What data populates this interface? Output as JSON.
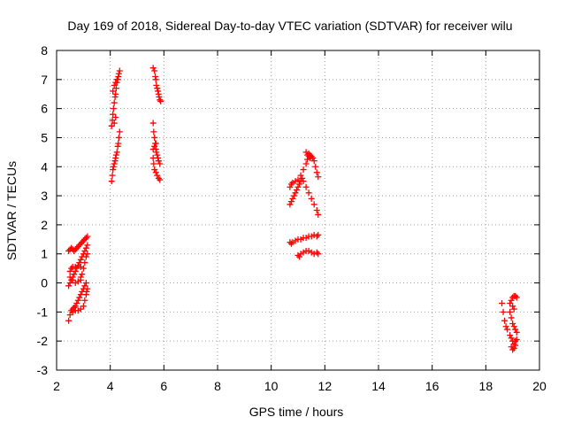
{
  "chart_data": {
    "type": "scatter",
    "title": "Day 169 of 2018, Sidereal Day-to-day VTEC variation (SDTVAR) for receiver wilu",
    "xlabel": "GPS time / hours",
    "ylabel": "SDTVAR / TECUs",
    "xlim": [
      2,
      20
    ],
    "ylim": [
      -3,
      8
    ],
    "xticks": [
      2,
      4,
      6,
      8,
      10,
      12,
      14,
      16,
      18,
      20
    ],
    "yticks": [
      -3,
      -2,
      -1,
      0,
      1,
      2,
      3,
      4,
      5,
      6,
      7,
      8
    ],
    "grid": true,
    "marker": "+",
    "series": [
      {
        "name": "SDTVAR",
        "color": "#ff0000",
        "points": [
          [
            2.45,
            -1.3
          ],
          [
            2.5,
            -1.1
          ],
          [
            2.55,
            -0.95
          ],
          [
            2.6,
            -0.9
          ],
          [
            2.65,
            -0.85
          ],
          [
            2.7,
            -0.8
          ],
          [
            2.75,
            -0.7
          ],
          [
            2.8,
            -0.6
          ],
          [
            2.85,
            -0.5
          ],
          [
            2.9,
            -0.4
          ],
          [
            2.95,
            -0.3
          ],
          [
            3.0,
            -0.2
          ],
          [
            3.05,
            -0.1
          ],
          [
            3.1,
            0.0
          ],
          [
            3.15,
            -0.2
          ],
          [
            2.6,
            -1.0
          ],
          [
            2.7,
            -0.95
          ],
          [
            2.8,
            -0.95
          ],
          [
            2.9,
            -0.9
          ],
          [
            3.0,
            -0.8
          ],
          [
            3.05,
            -0.6
          ],
          [
            3.1,
            -0.4
          ],
          [
            3.12,
            -0.3
          ],
          [
            2.45,
            -0.1
          ],
          [
            2.5,
            0.0
          ],
          [
            2.55,
            0.1
          ],
          [
            2.6,
            0.2
          ],
          [
            2.65,
            0.3
          ],
          [
            2.7,
            0.4
          ],
          [
            2.75,
            0.5
          ],
          [
            2.8,
            0.6
          ],
          [
            2.85,
            0.7
          ],
          [
            2.9,
            0.8
          ],
          [
            2.95,
            0.9
          ],
          [
            3.0,
            1.0
          ],
          [
            3.05,
            1.1
          ],
          [
            3.1,
            1.2
          ],
          [
            3.15,
            1.3
          ],
          [
            2.5,
            0.4
          ],
          [
            2.55,
            0.5
          ],
          [
            2.6,
            0.55
          ],
          [
            2.7,
            0.55
          ],
          [
            2.8,
            0.6
          ],
          [
            2.9,
            0.55
          ],
          [
            2.5,
            0.2
          ],
          [
            2.6,
            0.1
          ],
          [
            2.7,
            0.0
          ],
          [
            2.8,
            0.05
          ],
          [
            2.9,
            0.1
          ],
          [
            2.45,
            1.1
          ],
          [
            2.5,
            1.15
          ],
          [
            2.55,
            1.2
          ],
          [
            2.6,
            1.15
          ],
          [
            2.65,
            1.1
          ],
          [
            2.7,
            1.15
          ],
          [
            2.75,
            1.2
          ],
          [
            2.8,
            1.25
          ],
          [
            2.85,
            1.3
          ],
          [
            2.9,
            1.35
          ],
          [
            2.95,
            1.4
          ],
          [
            3.0,
            1.45
          ],
          [
            3.05,
            1.5
          ],
          [
            3.1,
            1.55
          ],
          [
            3.15,
            1.6
          ],
          [
            2.9,
            0.2
          ],
          [
            2.95,
            0.3
          ],
          [
            3.0,
            0.5
          ],
          [
            3.05,
            0.7
          ],
          [
            3.1,
            0.9
          ],
          [
            3.15,
            1.0
          ],
          [
            4.05,
            3.5
          ],
          [
            4.08,
            3.7
          ],
          [
            4.1,
            3.9
          ],
          [
            4.12,
            4.0
          ],
          [
            4.15,
            4.1
          ],
          [
            4.18,
            4.2
          ],
          [
            4.2,
            4.3
          ],
          [
            4.22,
            4.4
          ],
          [
            4.25,
            4.5
          ],
          [
            4.28,
            4.7
          ],
          [
            4.3,
            4.8
          ],
          [
            4.32,
            5.0
          ],
          [
            4.35,
            5.2
          ],
          [
            4.05,
            5.4
          ],
          [
            4.08,
            5.6
          ],
          [
            4.1,
            5.8
          ],
          [
            4.12,
            6.0
          ],
          [
            4.15,
            6.2
          ],
          [
            4.18,
            6.4
          ],
          [
            4.2,
            6.5
          ],
          [
            4.22,
            6.7
          ],
          [
            4.25,
            6.9
          ],
          [
            4.28,
            7.0
          ],
          [
            4.3,
            7.1
          ],
          [
            4.32,
            7.2
          ],
          [
            4.35,
            7.3
          ],
          [
            4.1,
            6.6
          ],
          [
            4.15,
            6.8
          ],
          [
            4.2,
            6.9
          ],
          [
            4.25,
            7.0
          ],
          [
            4.15,
            5.5
          ],
          [
            4.2,
            5.7
          ],
          [
            5.6,
            7.4
          ],
          [
            5.65,
            7.3
          ],
          [
            5.68,
            7.1
          ],
          [
            5.7,
            7.0
          ],
          [
            5.72,
            6.8
          ],
          [
            5.75,
            6.7
          ],
          [
            5.78,
            6.6
          ],
          [
            5.8,
            6.5
          ],
          [
            5.82,
            6.4
          ],
          [
            5.85,
            6.3
          ],
          [
            5.88,
            6.25
          ],
          [
            5.6,
            5.5
          ],
          [
            5.62,
            5.2
          ],
          [
            5.65,
            5.0
          ],
          [
            5.68,
            4.8
          ],
          [
            5.7,
            4.6
          ],
          [
            5.72,
            4.5
          ],
          [
            5.75,
            4.4
          ],
          [
            5.78,
            4.3
          ],
          [
            5.8,
            4.2
          ],
          [
            5.85,
            4.1
          ],
          [
            5.6,
            4.3
          ],
          [
            5.62,
            4.1
          ],
          [
            5.65,
            3.9
          ],
          [
            5.7,
            3.8
          ],
          [
            5.75,
            3.7
          ],
          [
            5.8,
            3.6
          ],
          [
            5.85,
            3.55
          ],
          [
            5.6,
            4.6
          ],
          [
            5.65,
            4.7
          ],
          [
            5.7,
            4.8
          ],
          [
            10.7,
            1.4
          ],
          [
            10.75,
            1.35
          ],
          [
            10.8,
            1.4
          ],
          [
            10.9,
            1.45
          ],
          [
            11.0,
            1.5
          ],
          [
            11.1,
            1.5
          ],
          [
            11.2,
            1.55
          ],
          [
            11.3,
            1.55
          ],
          [
            11.4,
            1.6
          ],
          [
            11.5,
            1.6
          ],
          [
            11.6,
            1.65
          ],
          [
            11.7,
            1.6
          ],
          [
            11.75,
            1.65
          ],
          [
            11.0,
            0.95
          ],
          [
            11.05,
            0.9
          ],
          [
            11.1,
            1.0
          ],
          [
            11.2,
            1.05
          ],
          [
            11.3,
            1.1
          ],
          [
            11.4,
            1.1
          ],
          [
            11.5,
            1.05
          ],
          [
            11.6,
            1.0
          ],
          [
            11.7,
            1.05
          ],
          [
            11.75,
            1.0
          ],
          [
            10.7,
            2.7
          ],
          [
            10.75,
            2.8
          ],
          [
            10.8,
            2.9
          ],
          [
            10.85,
            3.0
          ],
          [
            10.9,
            3.1
          ],
          [
            10.95,
            3.2
          ],
          [
            11.0,
            3.3
          ],
          [
            11.05,
            3.4
          ],
          [
            11.1,
            3.5
          ],
          [
            11.15,
            3.6
          ],
          [
            11.2,
            3.5
          ],
          [
            11.3,
            3.3
          ],
          [
            11.4,
            3.1
          ],
          [
            11.5,
            2.9
          ],
          [
            11.6,
            2.7
          ],
          [
            11.7,
            2.5
          ],
          [
            11.75,
            2.35
          ],
          [
            10.7,
            3.3
          ],
          [
            10.75,
            3.4
          ],
          [
            10.8,
            3.45
          ],
          [
            10.9,
            3.5
          ],
          [
            11.0,
            3.55
          ],
          [
            11.1,
            3.7
          ],
          [
            11.2,
            3.9
          ],
          [
            11.3,
            4.1
          ],
          [
            11.35,
            4.25
          ],
          [
            11.4,
            4.35
          ],
          [
            11.45,
            4.4
          ],
          [
            11.5,
            4.35
          ],
          [
            11.55,
            4.3
          ],
          [
            11.6,
            4.2
          ],
          [
            11.65,
            4.0
          ],
          [
            11.7,
            3.8
          ],
          [
            11.75,
            3.65
          ],
          [
            11.3,
            4.5
          ],
          [
            11.35,
            4.4
          ],
          [
            11.4,
            4.45
          ],
          [
            11.45,
            4.3
          ],
          [
            18.6,
            -0.7
          ],
          [
            18.65,
            -1.0
          ],
          [
            18.7,
            -1.3
          ],
          [
            18.75,
            -1.5
          ],
          [
            18.8,
            -1.6
          ],
          [
            18.9,
            -0.7
          ],
          [
            18.95,
            -0.6
          ],
          [
            19.0,
            -0.5
          ],
          [
            19.05,
            -0.45
          ],
          [
            19.1,
            -0.45
          ],
          [
            19.15,
            -0.5
          ],
          [
            18.9,
            -1.0
          ],
          [
            18.95,
            -1.2
          ],
          [
            19.0,
            -1.4
          ],
          [
            19.05,
            -1.5
          ],
          [
            19.1,
            -1.6
          ],
          [
            19.15,
            -1.7
          ],
          [
            18.9,
            -1.8
          ],
          [
            18.95,
            -1.9
          ],
          [
            19.0,
            -2.0
          ],
          [
            19.05,
            -2.1
          ],
          [
            19.1,
            -2.0
          ],
          [
            19.15,
            -1.95
          ],
          [
            18.95,
            -2.2
          ],
          [
            19.0,
            -2.3
          ],
          [
            19.05,
            -2.25
          ],
          [
            19.1,
            -2.15
          ],
          [
            19.0,
            -0.8
          ],
          [
            19.05,
            -0.9
          ]
        ]
      }
    ]
  }
}
